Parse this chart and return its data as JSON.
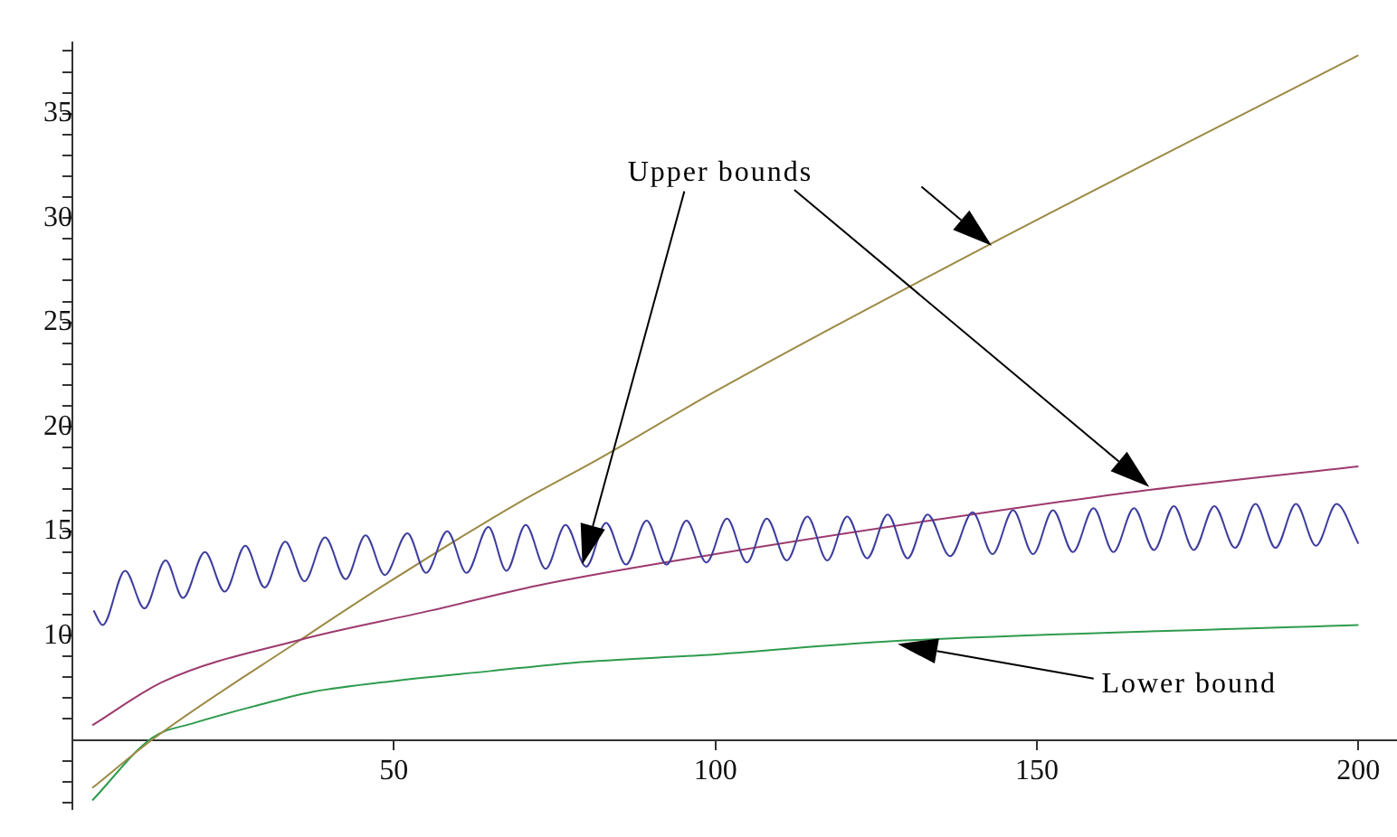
{
  "chart_data": {
    "type": "line",
    "xlim": [
      0,
      206
    ],
    "ylim": [
      1.7,
      38.4
    ],
    "xticks": [
      50,
      100,
      150,
      200
    ],
    "yticks": [
      {
        "value": 2,
        "label": null
      },
      {
        "value": 3,
        "label": null
      },
      {
        "value": 4,
        "label": null
      },
      {
        "value": 6,
        "label": null
      },
      {
        "value": 7,
        "label": null
      },
      {
        "value": 8,
        "label": null
      },
      {
        "value": 9,
        "label": null
      },
      10,
      {
        "value": 11,
        "label": null
      },
      {
        "value": 12,
        "label": null
      },
      {
        "value": 13,
        "label": null
      },
      {
        "value": 14,
        "label": null
      },
      15,
      {
        "value": 16,
        "label": null
      },
      {
        "value": 17,
        "label": null
      },
      {
        "value": 18,
        "label": null
      },
      {
        "value": 19,
        "label": null
      },
      20,
      {
        "value": 21,
        "label": null
      },
      {
        "value": 22,
        "label": null
      },
      {
        "value": 23,
        "label": null
      },
      {
        "value": 24,
        "label": null
      },
      25,
      {
        "value": 26,
        "label": null
      },
      {
        "value": 27,
        "label": null
      },
      {
        "value": 28,
        "label": null
      },
      {
        "value": 29,
        "label": null
      },
      30,
      {
        "value": 31,
        "label": null
      },
      {
        "value": 32,
        "label": null
      },
      {
        "value": 33,
        "label": null
      },
      {
        "value": 34,
        "label": null
      },
      35,
      {
        "value": 36,
        "label": null
      },
      {
        "value": 37,
        "label": null
      },
      {
        "value": 38,
        "label": null
      }
    ],
    "grid": false,
    "legend": false,
    "marker": "none",
    "line_style": "solid",
    "series": [
      {
        "color": "#3d3d9e",
        "x": [
          3.3,
          4.7,
          8.2,
          11.2,
          14.5,
          17.2,
          20.6,
          23.7,
          26.9,
          29.9,
          33.1,
          36.1,
          39.3,
          42.5,
          45.6,
          48.6,
          52.1,
          55,
          58.3,
          61.3,
          64.7,
          67.5,
          70.5,
          73.6,
          76.7,
          79.9,
          83,
          86.1,
          89.3,
          92.4,
          95.5,
          98.6,
          101.8,
          104.9,
          108,
          111.1,
          114.3,
          117.4,
          120.5,
          123.6,
          126.8,
          129.9,
          133,
          136.5,
          140,
          143.1,
          146.3,
          149.4,
          152.5,
          155.6,
          158.8,
          161.9,
          165.1,
          168.2,
          171.3,
          174.4,
          177.6,
          180.8,
          184,
          187.1,
          190.3,
          193.4,
          196.6,
          200
        ],
        "values": [
          11.2,
          10.5,
          13.1,
          11.3,
          13.6,
          11.8,
          14.0,
          12.1,
          14.3,
          12.3,
          14.5,
          12.6,
          14.7,
          12.7,
          14.8,
          12.9,
          14.9,
          13.0,
          15.0,
          13.0,
          15.2,
          13.1,
          15.3,
          13.2,
          15.3,
          13.3,
          15.4,
          13.4,
          15.5,
          13.4,
          15.5,
          13.5,
          15.6,
          13.5,
          15.6,
          13.6,
          15.7,
          13.6,
          15.7,
          13.7,
          15.8,
          13.7,
          15.8,
          13.8,
          15.9,
          13.9,
          16.0,
          13.9,
          16.0,
          14.0,
          16.1,
          14.0,
          16.1,
          14.1,
          16.2,
          14.1,
          16.2,
          14.2,
          16.3,
          14.2,
          16.3,
          14.3,
          16.3,
          14.4
        ]
      },
      {
        "color": "#9c3a6e",
        "x": [
          3.1,
          14.2,
          35.5,
          55.8,
          72.4,
          100,
          133.3,
          165.6,
          200
        ],
        "values": [
          5.7,
          7.8,
          9.8,
          11.2,
          12.4,
          13.9,
          15.5,
          16.9,
          18.1
        ]
      },
      {
        "color": "#9c8a44",
        "x": [
          3.1,
          12.8,
          35.5,
          48.4,
          69.6,
          81.5,
          100,
          141.2,
          200
        ],
        "values": [
          2.7,
          5.1,
          9.8,
          12.4,
          16.4,
          18.4,
          21.7,
          28.5,
          37.8
        ]
      },
      {
        "color": "#2e9b4e",
        "x": [
          3.1,
          12.4,
          18.8,
          28.1,
          37.3,
          49.3,
          65,
          77.9,
          100,
          126,
          200
        ],
        "values": [
          2.1,
          5.1,
          5.8,
          6.6,
          7.3,
          7.8,
          8.3,
          8.7,
          9.1,
          9.7,
          10.5
        ]
      }
    ],
    "annotations": [
      "Upper bounds",
      "Lower bound"
    ]
  }
}
